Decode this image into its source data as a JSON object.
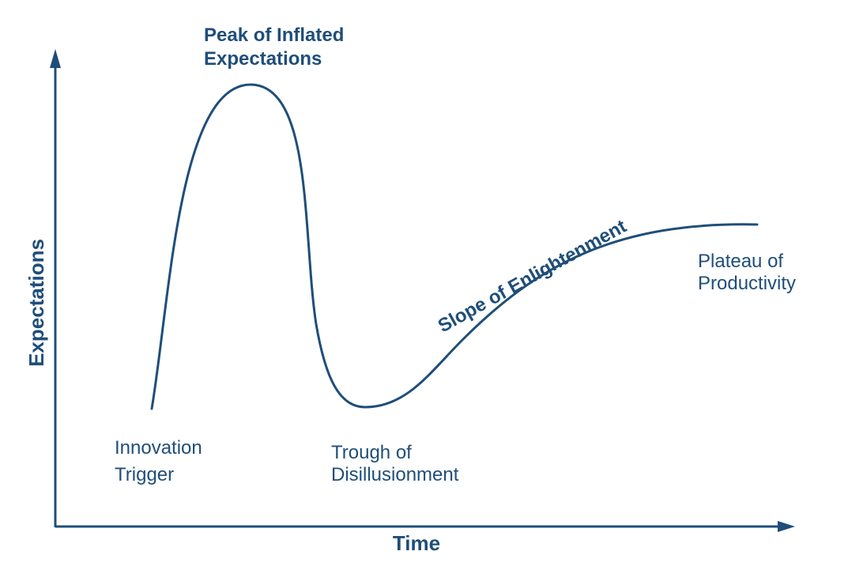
{
  "colors": {
    "primary": "#1f4e79",
    "background": "#ffffff"
  },
  "axes": {
    "x_label": "Time",
    "y_label": "Expectations"
  },
  "labels": {
    "peak": {
      "line1": "Peak of Inflated",
      "line2": "Expectations"
    },
    "trigger": {
      "line1": "Innovation",
      "line2": "Trigger"
    },
    "trough": {
      "line1": "Trough of",
      "line2": "Disillusionment"
    },
    "slope": {
      "text": "Slope of Enlightenment"
    },
    "plateau": {
      "line1": "Plateau of",
      "line2": "Productivity"
    }
  }
}
